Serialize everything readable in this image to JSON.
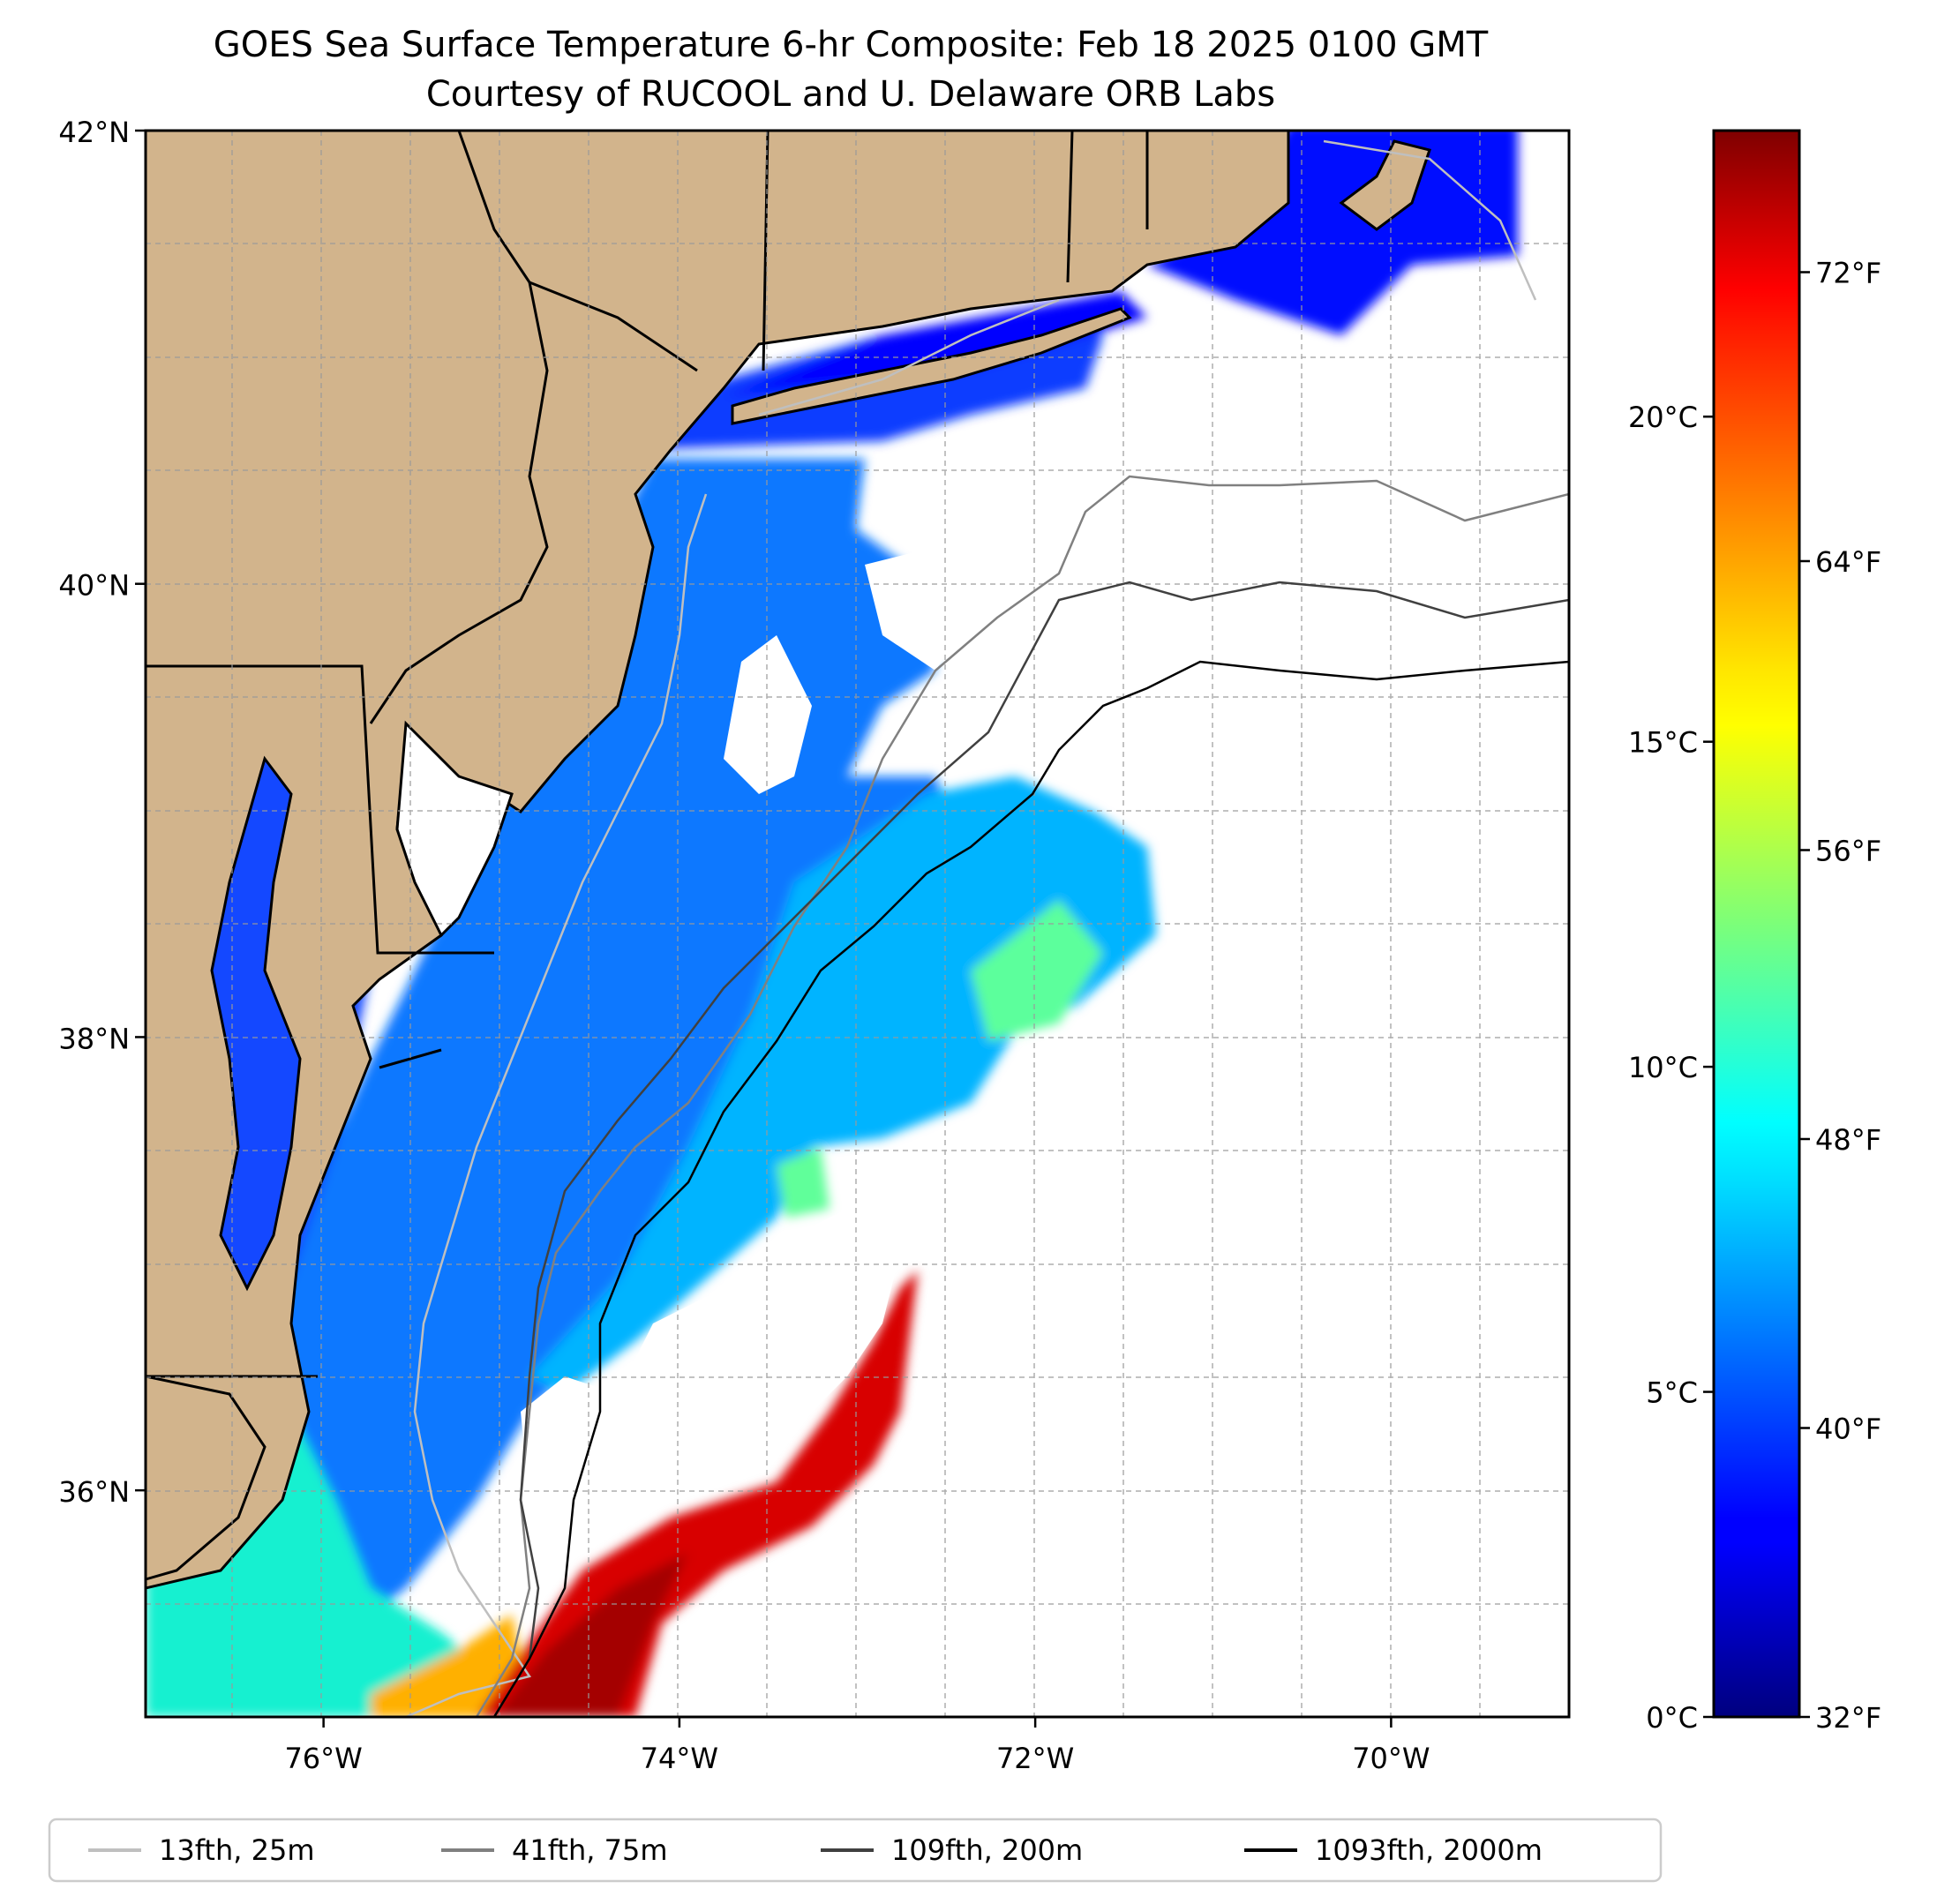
{
  "title": {
    "line1": "GOES Sea Surface Temperature 6-hr Composite: Feb 18 2025 0100 GMT",
    "line2": "Courtesy of RUCOOL and U. Delaware ORB Labs"
  },
  "map": {
    "lon_range": [
      -77,
      -69
    ],
    "lat_range": [
      35,
      42
    ],
    "lat_ticks": [
      {
        "value": 42,
        "label": "42°N"
      },
      {
        "value": 40,
        "label": "40°N"
      },
      {
        "value": 38,
        "label": "38°N"
      },
      {
        "value": 36,
        "label": "36°N"
      }
    ],
    "lon_ticks": [
      {
        "value": -76,
        "label": "76°W"
      },
      {
        "value": -74,
        "label": "74°W"
      },
      {
        "value": -72,
        "label": "72°W"
      },
      {
        "value": -70,
        "label": "70°W"
      }
    ],
    "grid": true,
    "land_color": "#d2b48c"
  },
  "colorbar": {
    "range_c": [
      0,
      24.4
    ],
    "colormap": "jet",
    "celsius_ticks": [
      {
        "value": 0,
        "label": "0°C"
      },
      {
        "value": 5,
        "label": "5°C"
      },
      {
        "value": 10,
        "label": "10°C"
      },
      {
        "value": 15,
        "label": "15°C"
      },
      {
        "value": 20,
        "label": "20°C"
      }
    ],
    "fahrenheit_ticks": [
      {
        "value": 32,
        "label": "32°F"
      },
      {
        "value": 40,
        "label": "40°F"
      },
      {
        "value": 48,
        "label": "48°F"
      },
      {
        "value": 56,
        "label": "56°F"
      },
      {
        "value": 64,
        "label": "64°F"
      },
      {
        "value": 72,
        "label": "72°F"
      }
    ]
  },
  "legend": {
    "placement": "bottom",
    "items": [
      {
        "label": "13fth, 25m",
        "color": "#bfbfbf"
      },
      {
        "label": "41fth, 75m",
        "color": "#808080"
      },
      {
        "label": "109fth, 200m",
        "color": "#404040"
      },
      {
        "label": "1093fth, 2000m",
        "color": "#000000"
      }
    ]
  }
}
